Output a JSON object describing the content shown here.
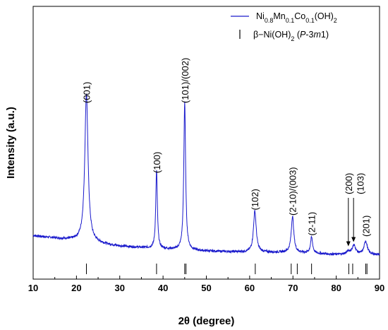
{
  "chart_data": {
    "type": "line",
    "xlabel": "2θ (degree)",
    "ylabel": "Intensity (a.u.)",
    "xlim": [
      10,
      90
    ],
    "x_ticks": [
      "10",
      "20",
      "30",
      "40",
      "50",
      "60",
      "70",
      "80",
      "90"
    ],
    "y_ticks": "none",
    "grid": false,
    "legend_position": "top-right",
    "legend": {
      "series_label": {
        "parts": [
          {
            "t": "Ni",
            "s": ""
          },
          {
            "t": "0.8",
            "s": "sub"
          },
          {
            "t": "Mn",
            "s": ""
          },
          {
            "t": "0.1",
            "s": "sub"
          },
          {
            "t": "Co",
            "s": ""
          },
          {
            "t": "0.1",
            "s": "sub"
          },
          {
            "t": "(OH)",
            "s": ""
          },
          {
            "t": "2",
            "s": "sub"
          }
        ]
      },
      "reference_label": {
        "parts": [
          {
            "t": "β−Ni(OH)",
            "s": ""
          },
          {
            "t": "2",
            "s": "sub"
          },
          {
            "t": " (",
            "s": ""
          },
          {
            "t": "P",
            "s": "it"
          },
          {
            "t": "-3",
            "s": ""
          },
          {
            "t": "m",
            "s": "it"
          },
          {
            "t": "1)",
            "s": ""
          }
        ]
      }
    },
    "series": [
      {
        "name": "Ni0.8Mn0.1Co0.1(OH)2",
        "color": "#1a1acc",
        "baseline": [
          [
            10,
            10.5
          ],
          [
            20,
            8.2
          ],
          [
            30,
            5.5
          ],
          [
            40,
            4.2
          ],
          [
            50,
            3.2
          ],
          [
            60,
            2.7
          ],
          [
            70,
            2.6
          ],
          [
            80,
            1.6
          ],
          [
            90,
            1.5
          ]
        ],
        "peaks": [
          {
            "center": 22.3,
            "height": 70,
            "width": 0.45
          },
          {
            "center": 38.5,
            "height": 37,
            "width": 0.22
          },
          {
            "center": 45.0,
            "height": 70,
            "width": 0.25
          },
          {
            "center": 61.2,
            "height": 19.5,
            "width": 0.38
          },
          {
            "center": 69.9,
            "height": 17,
            "width": 0.35
          },
          {
            "center": 74.3,
            "height": 7.5,
            "width": 0.3
          },
          {
            "center": 82.8,
            "height": 1.3,
            "width": 0.6
          },
          {
            "center": 84.1,
            "height": 4.2,
            "width": 0.5
          },
          {
            "center": 86.8,
            "height": 6.3,
            "width": 0.45
          }
        ],
        "noise": 0.55
      }
    ],
    "reference_lines": [
      22.3,
      38.5,
      45.0,
      45.3,
      61.3,
      69.6,
      71.0,
      74.3,
      82.9,
      83.8,
      86.8,
      87.1
    ],
    "peak_labels": [
      {
        "text": "(001)",
        "x": 22.3,
        "y": 73,
        "arrow": false
      },
      {
        "text": "(100)",
        "x": 38.5,
        "y": 40,
        "arrow": false
      },
      {
        "text": "(101)/(002)",
        "x": 45.0,
        "y": 73,
        "arrow": false
      },
      {
        "text": "(102)",
        "x": 61.2,
        "y": 22.5,
        "arrow": false
      },
      {
        "text": "(2-10)/(003)",
        "x": 69.9,
        "y": 20,
        "arrow": false
      },
      {
        "text": "(2-11)",
        "x": 74.3,
        "y": 10.5,
        "arrow": false
      },
      {
        "text": "(200)",
        "x": 82.8,
        "y": 30,
        "arrow": true,
        "arrow_to": 5.5
      },
      {
        "text": "(103)",
        "x": 85.5,
        "y": 30,
        "arrow": true,
        "arrow_to": 7.5,
        "arrow_x": 84.0
      },
      {
        "text": "(201)",
        "x": 86.8,
        "y": 10,
        "arrow": false
      }
    ]
  }
}
